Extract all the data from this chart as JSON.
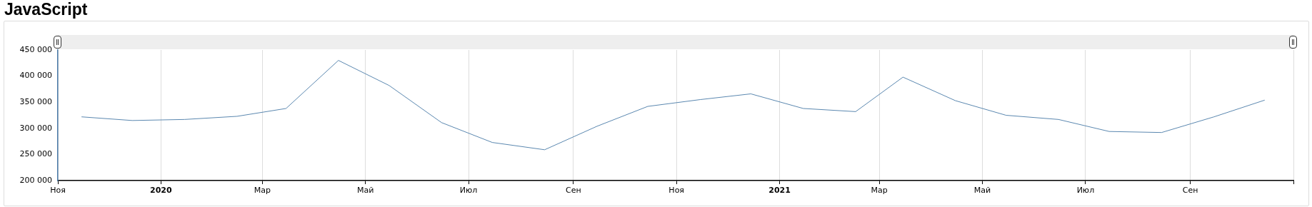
{
  "chart_data": {
    "type": "line",
    "title": "JavaScript",
    "x": [
      "2019-11-15",
      "2019-12-15",
      "2020-01-15",
      "2020-02-15",
      "2020-03-15",
      "2020-04-15",
      "2020-05-15",
      "2020-06-15",
      "2020-07-15",
      "2020-08-15",
      "2020-09-15",
      "2020-10-15",
      "2020-11-15",
      "2020-12-15",
      "2021-01-15",
      "2021-02-15",
      "2021-03-15",
      "2021-04-15",
      "2021-05-15",
      "2021-06-15",
      "2021-07-15",
      "2021-08-15",
      "2021-09-15",
      "2021-10-15"
    ],
    "series": [
      {
        "color": "#5b88b0",
        "values": [
          322000,
          315000,
          317000,
          323000,
          338000,
          430000,
          382000,
          311000,
          273000,
          259000,
          304000,
          342000,
          355000,
          366000,
          338000,
          332000,
          398000,
          353000,
          325000,
          317000,
          294000,
          292000,
          322000,
          354000
        ]
      }
    ],
    "xlim": [
      "2019-11-01",
      "2021-11-01"
    ],
    "xticks": [
      {
        "value": "2019-11-01",
        "label": "Ноя"
      },
      {
        "value": "2020-01-01",
        "label": "2020"
      },
      {
        "value": "2020-03-01",
        "label": "Мар"
      },
      {
        "value": "2020-05-01",
        "label": "Май"
      },
      {
        "value": "2020-07-01",
        "label": "Июл"
      },
      {
        "value": "2020-09-01",
        "label": "Сен"
      },
      {
        "value": "2020-11-01",
        "label": "Ноя"
      },
      {
        "value": "2021-01-01",
        "label": "2021"
      },
      {
        "value": "2021-03-01",
        "label": "Мар"
      },
      {
        "value": "2021-05-01",
        "label": "Май"
      },
      {
        "value": "2021-07-01",
        "label": "Июл"
      },
      {
        "value": "2021-09-01",
        "label": "Сен"
      },
      {
        "value": "2021-11-01",
        "label": null
      }
    ],
    "ylim": [
      200000,
      450000
    ],
    "yticks": [
      {
        "value": 200000,
        "label": "200 000"
      },
      {
        "value": 250000,
        "label": "250 000"
      },
      {
        "value": 300000,
        "label": "300 000"
      },
      {
        "value": 350000,
        "label": "350 000"
      },
      {
        "value": 400000,
        "label": "400 000"
      },
      {
        "value": 450000,
        "label": "450 000"
      }
    ],
    "grid": "x",
    "legend": false,
    "marker": "none",
    "line_style": "solid"
  }
}
